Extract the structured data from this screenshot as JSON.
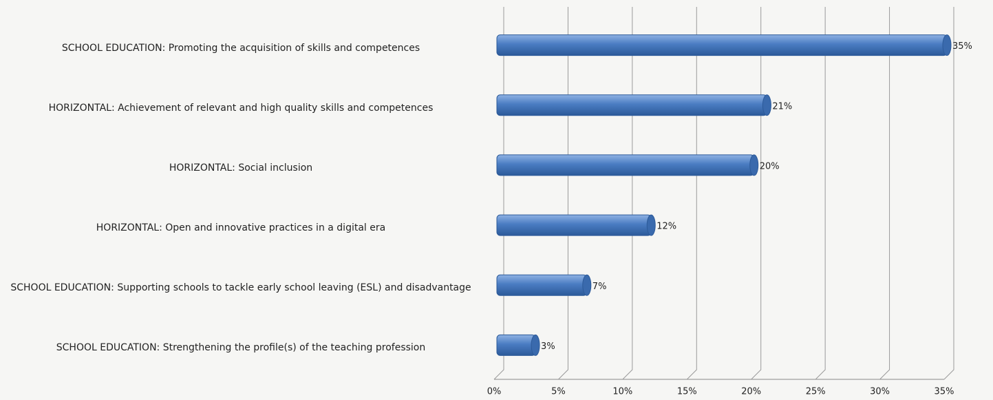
{
  "chart_data": {
    "type": "bar",
    "orientation": "horizontal",
    "categories": [
      "SCHOOL EDUCATION: Promoting the acquisition of skills and competences",
      "HORIZONTAL: Achievement of relevant and high quality skills and competences",
      "HORIZONTAL: Social inclusion",
      "HORIZONTAL: Open and innovative practices in a digital era",
      "SCHOOL EDUCATION: Supporting schools to tackle early school leaving (ESL) and disadvantage",
      "SCHOOL EDUCATION: Strengthening the profile(s) of the teaching profession"
    ],
    "values": [
      35,
      21,
      20,
      12,
      7,
      3
    ],
    "value_labels": [
      "35%",
      "21%",
      "20%",
      "12%",
      "7%",
      "3%"
    ],
    "color": "#4a7cc2",
    "xlim": [
      0,
      35
    ],
    "xticks": [
      {
        "value": 0,
        "label": "0%"
      },
      {
        "value": 5,
        "label": "5%"
      },
      {
        "value": 10,
        "label": "10%"
      },
      {
        "value": 15,
        "label": "15%"
      },
      {
        "value": 20,
        "label": "20%"
      },
      {
        "value": 25,
        "label": "25%"
      },
      {
        "value": 30,
        "label": "30%"
      },
      {
        "value": 35,
        "label": "35%"
      }
    ],
    "grid": true
  }
}
